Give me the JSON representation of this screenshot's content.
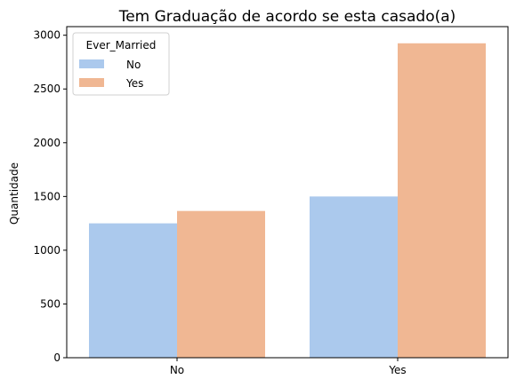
{
  "chart_data": {
    "type": "bar",
    "title": "Tem Graduação de acordo se esta casado(a)",
    "xlabel": "",
    "ylabel": "Quantidade",
    "categories": [
      "No",
      "Yes"
    ],
    "series": [
      {
        "name": "No",
        "values": [
          1250,
          1500
        ]
      },
      {
        "name": "Yes",
        "values": [
          1365,
          2925
        ]
      }
    ],
    "ylim": [
      0,
      3080
    ],
    "yticks": [
      0,
      500,
      1000,
      1500,
      2000,
      2500,
      3000
    ],
    "legend": {
      "title": "Ever_Married",
      "position": "top-left"
    },
    "grid": false
  },
  "colors": {
    "series": [
      "#abc9ed",
      "#f0b793"
    ],
    "axis": "#000000",
    "legend_border": "#d0d0d0"
  }
}
